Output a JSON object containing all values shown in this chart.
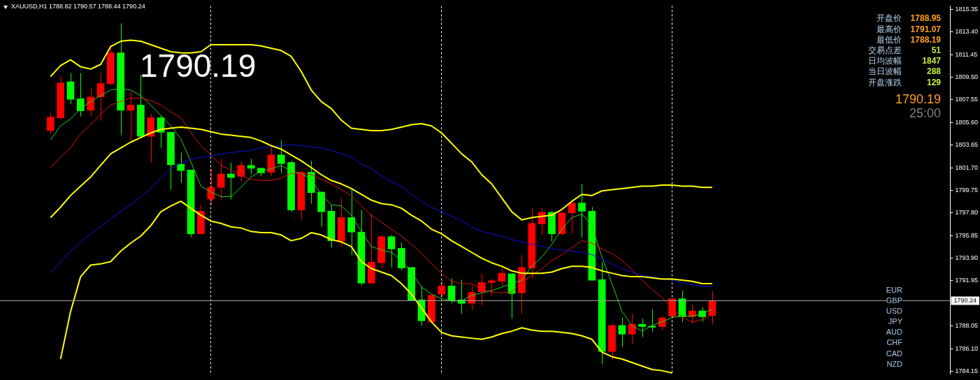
{
  "chart_data": {
    "type": "candlestick",
    "title": "XAUUSD,H1  1788.82 1790.57 1788.44 1790.24",
    "categories": [
      null,
      null,
      null,
      null,
      null,
      null,
      null,
      null,
      null,
      null,
      null,
      null,
      null,
      null,
      null,
      null,
      null,
      null,
      null,
      null,
      null,
      null,
      null,
      null,
      null,
      null,
      null,
      null,
      null,
      null,
      null,
      null,
      null,
      null,
      null,
      null,
      null,
      null,
      null,
      null,
      null,
      null,
      null,
      null,
      null,
      null,
      null,
      null,
      null,
      null,
      null,
      null,
      null,
      null,
      null,
      null,
      null,
      null,
      null,
      null,
      null,
      null,
      null,
      null,
      null,
      null,
      null
    ],
    "ohlc": [
      [
        1804.9,
        1806.4,
        1804.6,
        1806.05
      ],
      [
        1806.0,
        1809.55,
        1805.9,
        1809.0
      ],
      [
        1809.1,
        1809.85,
        1807.2,
        1807.6
      ],
      [
        1807.65,
        1809.85,
        1806.1,
        1806.6
      ],
      [
        1806.65,
        1808.5,
        1806.15,
        1807.8
      ],
      [
        1807.8,
        1809.85,
        1805.75,
        1808.95
      ],
      [
        1808.95,
        1812.3,
        1808.8,
        1811.6
      ],
      [
        1811.6,
        1814.15,
        1804.5,
        1806.65
      ],
      [
        1806.65,
        1808.25,
        1804.1,
        1807.1
      ],
      [
        1807.1,
        1809.7,
        1804.3,
        1804.4
      ],
      [
        1804.4,
        1806.35,
        1802.15,
        1806.0
      ],
      [
        1806.0,
        1806.2,
        1803.4,
        1804.75
      ],
      [
        1804.75,
        1804.8,
        1799.8,
        1801.95
      ],
      [
        1802.0,
        1803.0,
        1800.4,
        1801.45
      ],
      [
        1801.5,
        1801.5,
        1795.7,
        1796.0
      ],
      [
        1796.0,
        1798.5,
        1795.95,
        1797.95
      ],
      [
        1799.0,
        1801.6,
        1798.5,
        1800.0
      ],
      [
        1800.0,
        1802.45,
        1798.95,
        1801.15
      ],
      [
        1801.15,
        1802.15,
        1798.95,
        1800.85
      ],
      [
        1800.95,
        1802.25,
        1800.55,
        1801.9
      ],
      [
        1801.9,
        1802.45,
        1801.15,
        1801.65
      ],
      [
        1801.65,
        1801.7,
        1800.95,
        1801.25
      ],
      [
        1801.3,
        1803.5,
        1801.0,
        1802.8
      ],
      [
        1802.8,
        1804.05,
        1801.25,
        1802.05
      ],
      [
        1802.15,
        1802.3,
        1797.9,
        1798.05
      ],
      [
        1798.05,
        1801.45,
        1797.2,
        1801.3
      ],
      [
        1801.3,
        1802.3,
        1798.6,
        1799.55
      ],
      [
        1799.6,
        1799.6,
        1796.6,
        1797.9
      ],
      [
        1797.95,
        1798.5,
        1794.8,
        1795.4
      ],
      [
        1795.35,
        1799.05,
        1794.9,
        1797.4
      ],
      [
        1797.4,
        1799.95,
        1794.15,
        1796.15
      ],
      [
        1796.15,
        1798.05,
        1791.55,
        1791.75
      ],
      [
        1791.75,
        1797.7,
        1791.7,
        1793.55
      ],
      [
        1793.5,
        1795.9,
        1793.05,
        1795.75
      ],
      [
        1795.75,
        1795.9,
        1793.1,
        1794.7
      ],
      [
        1794.75,
        1795.25,
        1792.85,
        1793.05
      ],
      [
        1793.1,
        1793.15,
        1790.2,
        1790.25
      ],
      [
        1790.3,
        1791.45,
        1788.1,
        1788.5
      ],
      [
        1788.4,
        1790.7,
        1788.25,
        1790.7
      ],
      [
        1790.8,
        1792.0,
        1790.5,
        1791.5
      ],
      [
        1791.5,
        1792.15,
        1790.0,
        1790.25
      ],
      [
        1790.3,
        1792.05,
        1789.1,
        1790.0
      ],
      [
        1790.0,
        1791.55,
        1789.45,
        1790.95
      ],
      [
        1791.0,
        1792.55,
        1789.8,
        1791.8
      ],
      [
        1791.8,
        1792.1,
        1790.65,
        1791.95
      ],
      [
        1791.9,
        1793.15,
        1791.5,
        1792.6
      ],
      [
        1792.55,
        1792.6,
        1788.7,
        1790.85
      ],
      [
        1790.9,
        1794.15,
        1789.1,
        1793.1
      ],
      [
        1793.05,
        1798.2,
        1792.15,
        1796.9
      ],
      [
        1796.85,
        1798.2,
        1795.9,
        1797.85
      ],
      [
        1797.85,
        1797.95,
        1795.35,
        1796.0
      ],
      [
        1796.0,
        1797.85,
        1795.85,
        1797.8
      ],
      [
        1797.8,
        1798.65,
        1796.05,
        1798.65
      ],
      [
        1798.65,
        1800.3,
        1795.65,
        1797.95
      ],
      [
        1797.95,
        1798.3,
        1792.0,
        1792.0
      ],
      [
        1792.05,
        1793.55,
        1784.75,
        1785.85
      ],
      [
        1785.85,
        1788.25,
        1785.15,
        1788.1
      ],
      [
        1788.1,
        1788.75,
        1786.25,
        1787.35
      ],
      [
        1787.35,
        1789.1,
        1786.5,
        1788.2
      ],
      [
        1788.2,
        1788.7,
        1787.1,
        1788.0
      ],
      [
        1788.05,
        1789.5,
        1787.55,
        1787.95
      ],
      [
        1788.0,
        1788.9,
        1787.7,
        1788.75
      ],
      [
        1788.9,
        1790.4,
        1788.7,
        1790.4
      ],
      [
        1790.4,
        1791.1,
        1788.4,
        1788.85
      ],
      [
        1788.85,
        1789.9,
        1788.25,
        1789.35
      ],
      [
        1789.35,
        1789.65,
        1788.4,
        1788.85
      ],
      [
        1788.95,
        1791.07,
        1788.19,
        1790.19
      ]
    ],
    "colors": [
      "#ff0000",
      "#ff0000",
      "#00ff00",
      "#00ff00",
      "#ff0000",
      "#ff0000",
      "#ff0000",
      "#00ff00",
      "#ff0000",
      "#00ff00",
      "#ff0000",
      "#00ff00",
      "#00ff00",
      "#00ff00",
      "#00ff00",
      "#ff0000",
      "#ff0000",
      "#ff0000",
      "#00ff00",
      "#ff0000",
      "#00ff00",
      "#00ff00",
      "#ff0000",
      "#00ff00",
      "#00ff00",
      "#ff0000",
      "#00ff00",
      "#00ff00",
      "#00ff00",
      "#ff0000",
      "#00ff00",
      "#00ff00",
      "#ff0000",
      "#ff0000",
      "#00ff00",
      "#00ff00",
      "#00ff00",
      "#00ff00",
      "#ff0000",
      "#ff0000",
      "#00ff00",
      "#00ff00",
      "#ff0000",
      "#ff0000",
      "#ff0000",
      "#ff0000",
      "#00ff00",
      "#ff0000",
      "#ff0000",
      "#ff0000",
      "#00ff00",
      "#ff0000",
      "#ff0000",
      "#00ff00",
      "#00ff00",
      "#00ff00",
      "#ff0000",
      "#00ff00",
      "#ff0000",
      "#00ff00",
      "#00ff00",
      "#ff0000",
      "#ff0000",
      "#00ff00",
      "#ff0000",
      "#00ff00",
      "#ff0000"
    ],
    "ylim": [
      1783.9,
      1815.65
    ],
    "yticks": [
      {
        "value": 1784.15,
        "label": "1784.15"
      },
      {
        "value": 1786.1,
        "label": "1786.10"
      },
      {
        "value": 1788.05,
        "label": "1788.05"
      },
      {
        "value": 1791.95,
        "label": "1791.95"
      },
      {
        "value": 1793.9,
        "label": "1793.90"
      },
      {
        "value": 1795.85,
        "label": "1795.85"
      },
      {
        "value": 1797.8,
        "label": "1797.80"
      },
      {
        "value": 1799.75,
        "label": "1799.75"
      },
      {
        "value": 1801.7,
        "label": "1801.70"
      },
      {
        "value": 1803.65,
        "label": "1803.65"
      },
      {
        "value": 1805.6,
        "label": "1805.60"
      },
      {
        "value": 1807.55,
        "label": "1807.55"
      },
      {
        "value": 1809.5,
        "label": "1809.50"
      },
      {
        "value": 1811.45,
        "label": "1811.45"
      },
      {
        "value": 1813.4,
        "label": "1813.40"
      },
      {
        "value": 1815.35,
        "label": "1815.35"
      }
    ],
    "tick_labels": "y",
    "grid": "x",
    "legend": false,
    "ref_lines": [
      {
        "axis": "y",
        "value": 1790.24,
        "label": "1790.24",
        "color": "#a0a0a0"
      }
    ],
    "annotations": [
      "1790.19",
      "开盘价",
      "最高价",
      "最低价",
      "交易点差",
      "日均波幅",
      "当日波幅",
      "开盘涨跌",
      "1788.95",
      "1791.07",
      "1788.19",
      "51",
      "1847",
      "288",
      "129",
      "1790.19",
      "25:00",
      "EUR",
      "GBP",
      "USD",
      "JPY",
      "AUD",
      "CHF",
      "CAD",
      "NZD"
    ],
    "series": [
      {
        "type": "line",
        "color": "#ffff00",
        "values": [
          1809.55,
          1810.5,
          1811.0,
          1810.4,
          1810.2,
          1810.6,
          1812.15,
          1812.6,
          1812.7,
          1812.6,
          1812.3,
          1812.0,
          1811.7,
          1811.6,
          1811.6,
          1811.7,
          1812.3,
          1812.3,
          1812.3,
          1812.3,
          1812.3,
          1812.2,
          1812.0,
          1811.8,
          1811.3,
          1810.0,
          1808.4,
          1807.4,
          1806.8,
          1805.8,
          1805.1,
          1805.0,
          1804.9,
          1804.9,
          1805.0,
          1805.2,
          1805.4,
          1805.5,
          1805.3,
          1804.7,
          1803.8,
          1802.9,
          1802.2,
          1801.1,
          1800.3,
          1799.1,
          1797.9,
          1797.2,
          1797.4,
          1797.5,
          1797.6,
          1798.1,
          1798.8,
          1799.4,
          1799.3,
          1799.7,
          1799.8,
          1799.9,
          1800.0,
          1800.1,
          1800.1,
          1800.2,
          1800.2,
          1800.1,
          1800.1,
          1800.0,
          1800.0
        ]
      },
      {
        "type": "line",
        "color": "#ffff00",
        "values": [
          1797.4,
          1798.3,
          1799.3,
          1800.1,
          1800.9,
          1801.9,
          1802.9,
          1803.4,
          1803.9,
          1804.3,
          1804.7,
          1805.0,
          1805.1,
          1805.2,
          1805.1,
          1805.0,
          1804.8,
          1804.6,
          1804.5,
          1804.4,
          1804.3,
          1804.0,
          1803.6,
          1803.3,
          1802.8,
          1802.3,
          1801.7,
          1801.1,
          1800.6,
          1800.3,
          1799.9,
          1799.4,
          1798.9,
          1798.6,
          1798.5,
          1798.2,
          1797.6,
          1797.1,
          1796.4,
          1796.0,
          1795.4,
          1794.9,
          1794.4,
          1793.9,
          1793.5,
          1793.2,
          1792.8,
          1792.6,
          1792.6,
          1792.6,
          1792.7,
          1793.0,
          1793.2,
          1793.2,
          1793.1,
          1792.8,
          1792.6,
          1792.4,
          1792.3,
          1792.3,
          1792.2,
          1792.1,
          1792.1,
          1792.0,
          1791.9,
          1791.7,
          1791.7
        ]
      },
      {
        "type": "line",
        "color": "#ffff00",
        "values": [
          null,
          1785.2,
          1789.3,
          1792.3,
          1793.3,
          1793.4,
          1793.6,
          1794.5,
          1795.2,
          1795.8,
          1796.7,
          1797.9,
          1798.4,
          1798.8,
          1798.2,
          1797.6,
          1797.1,
          1796.9,
          1796.6,
          1796.5,
          1796.2,
          1796.1,
          1796.1,
          1795.9,
          1795.4,
          1795.6,
          1796.1,
          1795.9,
          1795.5,
          1795.3,
          1794.9,
          1793.6,
          1793.0,
          1792.7,
          1792.4,
          1791.7,
          1790.8,
          1789.6,
          1788.4,
          1787.5,
          1787.2,
          1787.1,
          1787.0,
          1786.9,
          1787.1,
          1787.4,
          1787.6,
          1787.9,
          1787.7,
          1787.6,
          1787.6,
          1787.5,
          1787.4,
          1787.2,
          1786.9,
          1785.8,
          1785.4,
          1785.2,
          1784.9,
          1784.6,
          1784.3,
          1784.2,
          1784.0,
          null,
          null,
          null,
          null
        ]
      },
      {
        "type": "line",
        "color": "#1010e0",
        "values": [
          1792.6,
          1793.6,
          1794.5,
          1795.3,
          1796.0,
          1796.6,
          1797.3,
          1797.9,
          1798.5,
          1799.2,
          1799.9,
          1800.8,
          1801.6,
          1802.1,
          1802.4,
          1802.6,
          1802.7,
          1802.9,
          1803.0,
          1803.1,
          1803.2,
          1803.4,
          1803.5,
          1803.6,
          1803.7,
          1803.6,
          1803.5,
          1803.4,
          1803.2,
          1802.9,
          1802.6,
          1802.0,
          1801.6,
          1801.0,
          1800.5,
          1800.1,
          1799.4,
          1798.8,
          1798.3,
          1797.9,
          1797.5,
          1797.1,
          1796.6,
          1796.2,
          1796.0,
          1795.8,
          1795.5,
          1795.3,
          1795.1,
          1794.9,
          1794.7,
          1794.6,
          1794.5,
          1794.4,
          1794.2,
          1793.8,
          1793.4,
          1793.0,
          1792.7,
          1792.4,
          1792.3,
          1792.1,
          1792.0,
          1791.8,
          1791.6,
          1791.5,
          1791.4
        ]
      },
      {
        "type": "line",
        "color": "#e01010",
        "values": [
          1801.7,
          1802.6,
          1803.4,
          1804.6,
          1805.4,
          1806.3,
          1807.1,
          1807.4,
          1807.7,
          1807.7,
          1807.5,
          1807.1,
          1806.5,
          1806.0,
          1804.7,
          1803.6,
          1802.8,
          1801.9,
          1801.5,
          1801.0,
          1800.7,
          1800.6,
          1800.6,
          1800.8,
          1801.2,
          1801.2,
          1801.1,
          1800.7,
          1800.3,
          1799.8,
          1799.3,
          1798.4,
          1797.6,
          1797.0,
          1796.4,
          1795.8,
          1795.1,
          1794.3,
          1793.4,
          1792.6,
          1791.9,
          1791.7,
          1791.7,
          1791.2,
          1791.0,
          1790.9,
          1791.0,
          1791.8,
          1792.4,
          1793.0,
          1793.7,
          1794.2,
          1794.8,
          1795.4,
          1795.2,
          1794.7,
          1794.3,
          1793.7,
          1792.9,
          1792.0,
          1791.2,
          1790.5,
          1789.6,
          1788.8,
          1788.4,
          1788.6,
          1789.0
        ]
      },
      {
        "type": "line",
        "color": "#20d020",
        "values": [
          1804.1,
          1805.3,
          1805.9,
          1806.8,
          1807.4,
          1807.9,
          1808.4,
          1808.5,
          1808.4,
          1807.9,
          1807.1,
          1806.2,
          1805.3,
          1804.2,
          1802.2,
          1800.1,
          1799.6,
          1799.2,
          1799.2,
          1800.0,
          1800.9,
          1801.4,
          1801.6,
          1801.9,
          1801.4,
          1801.2,
          1800.7,
          1799.4,
          1798.5,
          1798.4,
          1797.6,
          1796.2,
          1794.9,
          1794.6,
          1794.4,
          1793.7,
          1792.7,
          1791.4,
          1790.8,
          1790.4,
          1790.2,
          1790.2,
          1790.7,
          1790.9,
          1791.1,
          1791.4,
          1791.7,
          1792.0,
          1793.2,
          1794.0,
          1795.1,
          1796.4,
          1797.4,
          1797.7,
          1796.7,
          1794.0,
          1791.7,
          1789.3,
          1788.1,
          1787.6,
          1788.1,
          1788.4,
          1788.8,
          1788.9,
          1788.9,
          1789.1,
          1789.5
        ]
      }
    ]
  }
}
